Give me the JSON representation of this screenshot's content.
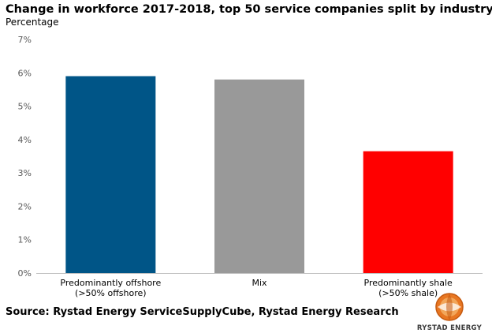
{
  "header": {
    "title": "Change in workforce 2017-2018, top 50 service companies split by industry",
    "subtitle": "Percentage"
  },
  "footer": {
    "source": "Source: Rystad Energy ServiceSupplyCube, Rystad Energy Research"
  },
  "brand": {
    "name": "RYSTAD ENERGY",
    "logo_icon": "rystad-globe-icon",
    "logo_colors": [
      "#e87722",
      "#f2a65a",
      "#c55a11"
    ]
  },
  "chart_data": {
    "type": "bar",
    "title": "Change in workforce 2017-2018, top 50 service companies split by industry",
    "ylabel": "Percentage",
    "xlabel": "",
    "categories": [
      [
        "Predominantly offshore",
        "(>50% offshore)"
      ],
      [
        "Mix"
      ],
      [
        "Predominantly shale",
        "(>50% shale)"
      ]
    ],
    "values": [
      5.9,
      5.8,
      3.65
    ],
    "colors": [
      "#005587",
      "#999999",
      "#ff0000"
    ],
    "ylim": [
      0,
      7
    ],
    "yticks": [
      0,
      1,
      2,
      3,
      4,
      5,
      6,
      7
    ],
    "ytick_suffix": "%",
    "grid": false,
    "legend": "none"
  }
}
